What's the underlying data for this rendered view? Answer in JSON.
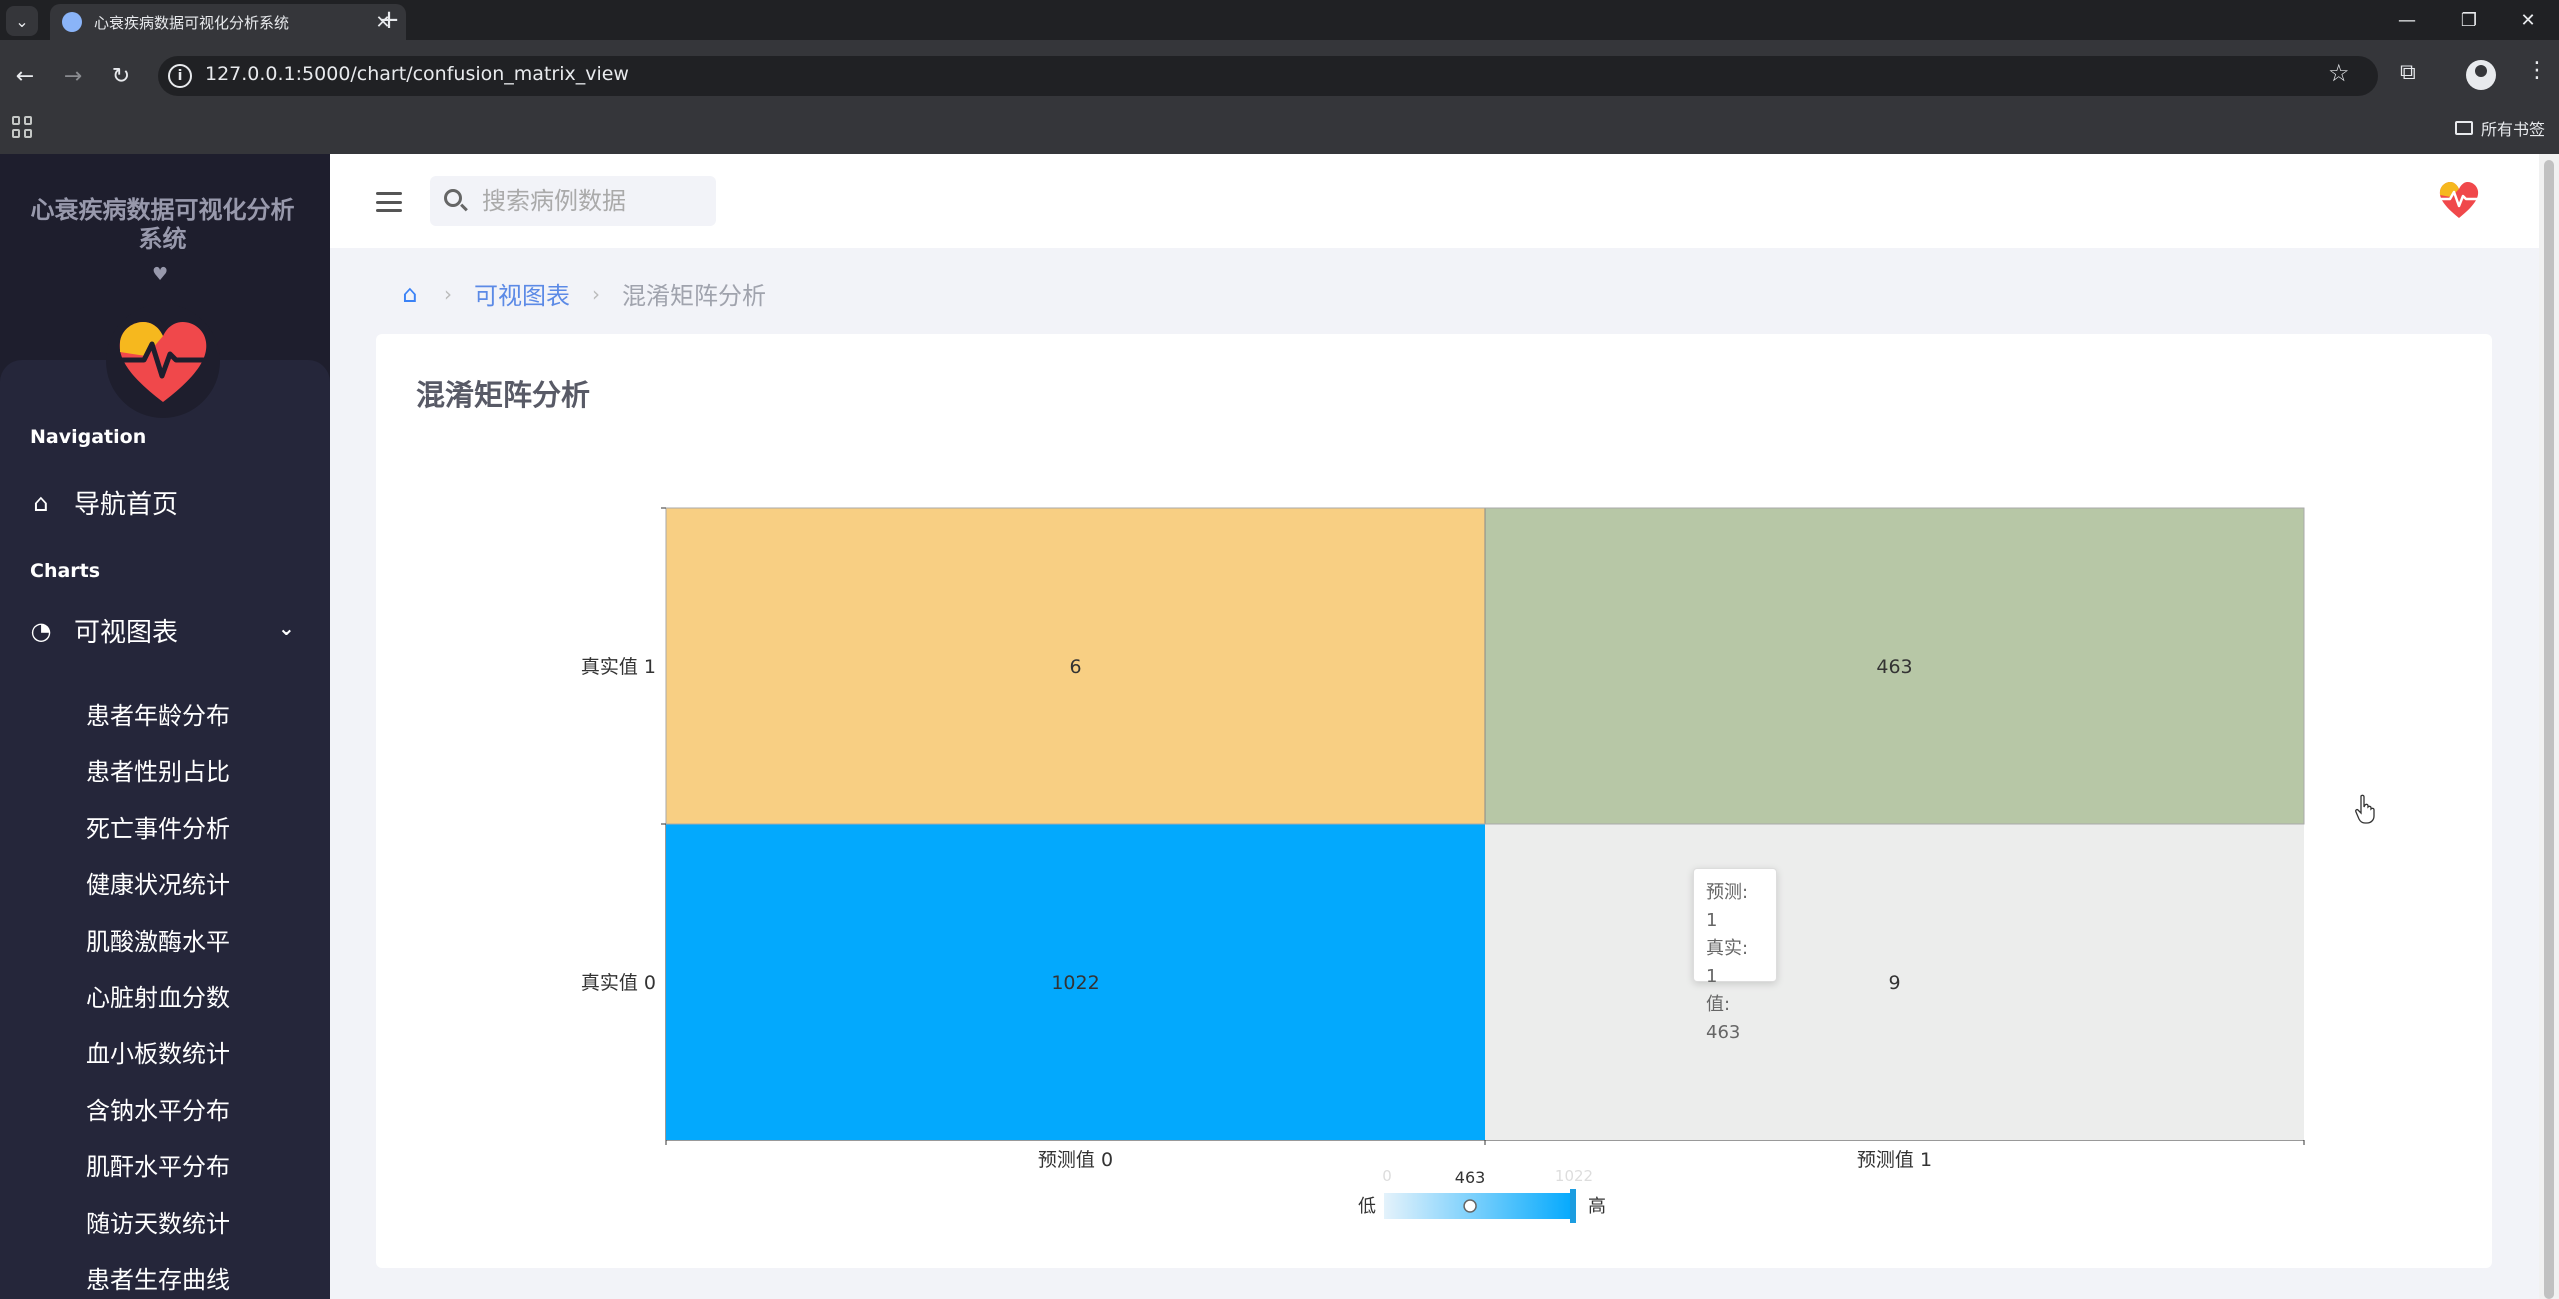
{
  "browser": {
    "tab_title": "心衰疾病数据可视化分析系统",
    "url": "127.0.0.1:5000/chart/confusion_matrix_view",
    "all_bookmarks": "所有书签",
    "new_tab": "+",
    "tab_close": "✕"
  },
  "sidebar": {
    "title": "心衰疾病数据可视化分析系统",
    "section_navigation": "Navigation",
    "home_label": "导航首页",
    "section_charts": "Charts",
    "charts_label": "可视图表",
    "sub_items": [
      "患者年龄分布",
      "患者性别占比",
      "死亡事件分析",
      "健康状况统计",
      "肌酸激酶水平",
      "心脏射血分数",
      "血小板数统计",
      "含钠水平分布",
      "肌酐水平分布",
      "随访天数统计",
      "患者生存曲线"
    ]
  },
  "header": {
    "search_placeholder": "搜索病例数据"
  },
  "breadcrumb": {
    "link": "可视图表",
    "current": "混淆矩阵分析"
  },
  "card": {
    "title": "混淆矩阵分析"
  },
  "tooltip": {
    "line1": "预测: 1",
    "line2": "真实: 1",
    "line3": "值: 463"
  },
  "colors": {
    "sidebar_bg": "#1e1e2d",
    "accent": "#5c8ae6",
    "cell_low": "#ecedec",
    "cell_high": "#03a9fd"
  },
  "chart_data": {
    "type": "heatmap",
    "title": "",
    "x_categories": [
      "预测值 0",
      "预测值 1"
    ],
    "y_categories": [
      "真实值 0",
      "真实值 1"
    ],
    "values": [
      {
        "x": "预测值 0",
        "y": "真实值 1",
        "value": 6
      },
      {
        "x": "预测值 1",
        "y": "真实值 1",
        "value": 463
      },
      {
        "x": "预测值 0",
        "y": "真实值 0",
        "value": 1022
      },
      {
        "x": "预测值 1",
        "y": "真实值 0",
        "value": 9
      }
    ],
    "cell_colors": {
      "预测值 0|真实值 1": "#f8cf83",
      "预测值 1|真实值 1": "#b7c7a6",
      "预测值 0|真实值 0": "#03a9fd",
      "预测值 1|真实值 0": "#ecedec"
    },
    "highlighted_cell": "预测值 1|真实值 1",
    "visual_map": {
      "min": 0,
      "max": 1022,
      "current": 463,
      "low_label": "低",
      "high_label": "高"
    }
  }
}
